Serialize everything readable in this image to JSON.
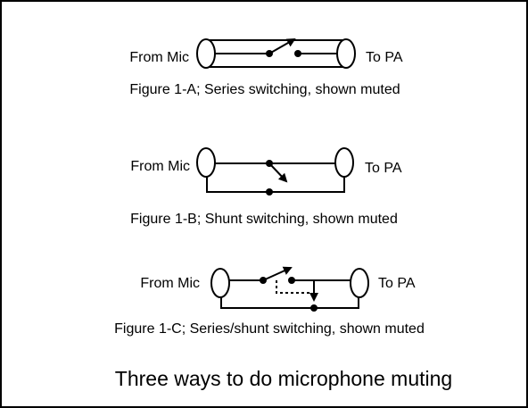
{
  "figures": {
    "a": {
      "from_label": "From Mic",
      "to_label": "To PA",
      "caption": "Figure 1-A; Series switching, shown muted"
    },
    "b": {
      "from_label": "From Mic",
      "to_label": "To PA",
      "caption": "Figure 1-B; Shunt switching, shown muted"
    },
    "c": {
      "from_label": "From Mic",
      "to_label": "To PA",
      "caption": "Figure 1-C; Series/shunt switching, shown muted"
    }
  },
  "page": {
    "title": "Three ways to do microphone muting"
  }
}
